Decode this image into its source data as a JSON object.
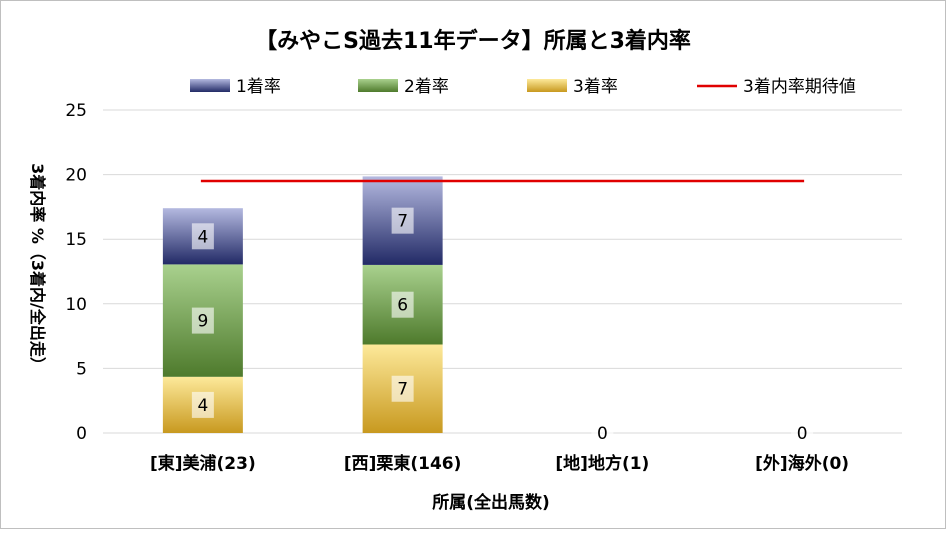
{
  "chart_data": {
    "type": "bar",
    "stacked": true,
    "title": "【みやこS過去11年データ】所属と3着内率",
    "xlabel": "所属(全出馬数)",
    "ylabel": "3着内率 %（3着内/全出走）",
    "ylim": [
      0,
      25
    ],
    "yticks": [
      "0",
      "5",
      "10",
      "15",
      "20",
      "25"
    ],
    "grid": true,
    "legend_position": "top",
    "categories": [
      "[東]美浦(23)",
      "[西]栗東(146)",
      "[地]地方(1)",
      "[外]海外(0)"
    ],
    "series": [
      {
        "name": "3着率",
        "values": [
          4.35,
          6.85,
          0,
          0
        ],
        "labels": [
          "4",
          "7",
          "0",
          "0"
        ],
        "color_top": "#fde99a",
        "color_bottom": "#c8991f"
      },
      {
        "name": "2着率",
        "values": [
          8.7,
          6.16,
          0,
          0
        ],
        "labels": [
          "9",
          "6",
          "",
          ""
        ],
        "color_top": "#a9d18e",
        "color_bottom": "#4e7a2c"
      },
      {
        "name": "1着率",
        "values": [
          4.35,
          6.85,
          0,
          0
        ],
        "labels": [
          "4",
          "7",
          "",
          ""
        ],
        "color_top": "#b4b9e0",
        "color_bottom": "#222a66"
      }
    ],
    "reference_line": {
      "name": "3着内率期待値",
      "value": 19.5,
      "color": "#e00000"
    }
  }
}
